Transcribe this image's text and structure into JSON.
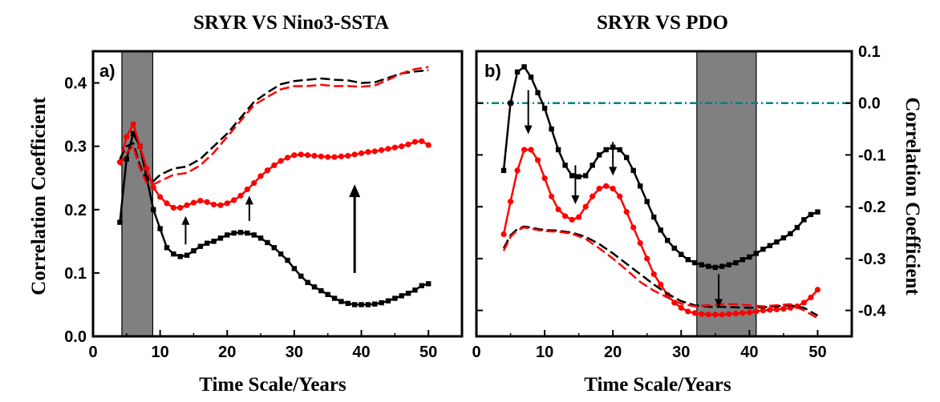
{
  "chart_data": [
    {
      "panel_label": "a)",
      "title": "SRYR VS Nino3-SSTA",
      "xlabel": "Time Scale/Years",
      "ylabel": "Correlation Coefficient",
      "xlim": [
        0,
        55
      ],
      "ylim": [
        0.0,
        0.45
      ],
      "x_ticks": [
        0,
        10,
        20,
        30,
        40,
        50
      ],
      "y_ticks": [
        0.0,
        0.1,
        0.2,
        0.3,
        0.4
      ],
      "y_tick_labels": [
        "0.0",
        "0.1",
        "0.2",
        "0.3",
        "0.4"
      ],
      "shaded_region": [
        4.3,
        8.9
      ],
      "series": [
        {
          "name": "black-squares",
          "color": "#000000",
          "style": "solid",
          "marker": "square",
          "x": [
            4,
            5,
            6,
            7,
            8,
            9,
            10,
            11,
            12,
            13,
            14,
            15,
            16,
            17,
            18,
            19,
            20,
            21,
            22,
            23,
            24,
            25,
            26,
            27,
            28,
            29,
            30,
            31,
            32,
            33,
            34,
            35,
            36,
            37,
            38,
            39,
            40,
            41,
            42,
            43,
            44,
            45,
            46,
            47,
            48,
            49,
            50
          ],
          "y": [
            0.18,
            0.28,
            0.32,
            0.3,
            0.25,
            0.2,
            0.17,
            0.14,
            0.13,
            0.126,
            0.128,
            0.135,
            0.142,
            0.147,
            0.15,
            0.155,
            0.16,
            0.163,
            0.164,
            0.163,
            0.16,
            0.155,
            0.148,
            0.14,
            0.13,
            0.12,
            0.107,
            0.095,
            0.085,
            0.078,
            0.072,
            0.066,
            0.06,
            0.055,
            0.052,
            0.05,
            0.05,
            0.05,
            0.051,
            0.053,
            0.056,
            0.06,
            0.064,
            0.068,
            0.073,
            0.08,
            0.083
          ]
        },
        {
          "name": "red-circles",
          "color": "#ff0000",
          "style": "solid",
          "marker": "circle",
          "x": [
            4,
            5,
            6,
            7,
            8,
            9,
            10,
            11,
            12,
            13,
            14,
            15,
            16,
            17,
            18,
            19,
            20,
            21,
            22,
            23,
            24,
            25,
            26,
            27,
            28,
            29,
            30,
            31,
            32,
            33,
            34,
            35,
            36,
            37,
            38,
            39,
            40,
            41,
            42,
            43,
            44,
            45,
            46,
            47,
            48,
            49,
            50
          ],
          "y": [
            0.275,
            0.315,
            0.335,
            0.3,
            0.265,
            0.235,
            0.22,
            0.21,
            0.203,
            0.203,
            0.207,
            0.211,
            0.214,
            0.212,
            0.208,
            0.207,
            0.21,
            0.215,
            0.222,
            0.232,
            0.242,
            0.253,
            0.262,
            0.27,
            0.277,
            0.282,
            0.286,
            0.287,
            0.286,
            0.285,
            0.284,
            0.283,
            0.283,
            0.284,
            0.285,
            0.287,
            0.289,
            0.291,
            0.292,
            0.294,
            0.296,
            0.298,
            0.3,
            0.303,
            0.307,
            0.308,
            0.302
          ]
        },
        {
          "name": "black-dashed",
          "color": "#000000",
          "style": "dashed",
          "marker": "none",
          "x": [
            4,
            5,
            6,
            7,
            8,
            9,
            10,
            12,
            14,
            16,
            18,
            20,
            22,
            24,
            26,
            28,
            30,
            32,
            34,
            36,
            38,
            40,
            42,
            44,
            46,
            48,
            50
          ],
          "y": [
            0.28,
            0.3,
            0.305,
            0.27,
            0.245,
            0.245,
            0.255,
            0.265,
            0.268,
            0.28,
            0.3,
            0.32,
            0.345,
            0.37,
            0.385,
            0.398,
            0.403,
            0.405,
            0.407,
            0.405,
            0.404,
            0.4,
            0.401,
            0.408,
            0.415,
            0.418,
            0.42
          ]
        },
        {
          "name": "red-dashed",
          "color": "#ff0000",
          "style": "dashed",
          "marker": "none",
          "x": [
            4,
            5,
            6,
            7,
            8,
            9,
            10,
            12,
            14,
            16,
            18,
            20,
            22,
            24,
            26,
            28,
            30,
            32,
            34,
            36,
            38,
            40,
            42,
            44,
            46,
            48,
            50
          ],
          "y": [
            0.27,
            0.29,
            0.3,
            0.265,
            0.242,
            0.24,
            0.245,
            0.255,
            0.258,
            0.27,
            0.29,
            0.315,
            0.34,
            0.365,
            0.378,
            0.39,
            0.395,
            0.395,
            0.397,
            0.395,
            0.395,
            0.394,
            0.396,
            0.405,
            0.415,
            0.422,
            0.425
          ]
        }
      ],
      "arrows": [
        {
          "direction": "up",
          "x": 13.8,
          "y_start": 0.145,
          "y_end": 0.19
        },
        {
          "direction": "up",
          "x": 23.3,
          "y_start": 0.182,
          "y_end": 0.222
        },
        {
          "direction": "up",
          "x": 39.0,
          "y_start": 0.1,
          "y_end": 0.24
        }
      ]
    },
    {
      "panel_label": "b)",
      "title": "SRYR VS PDO",
      "xlabel": "Time Scale/Years",
      "ylabel": "Correlation Coefficient",
      "xlim": [
        0,
        55
      ],
      "ylim": [
        -0.45,
        0.1
      ],
      "x_ticks": [
        0,
        10,
        20,
        30,
        40,
        50
      ],
      "y_ticks": [
        -0.4,
        -0.3,
        -0.2,
        -0.1,
        0.0,
        0.1
      ],
      "y_tick_labels": [
        "-0.4",
        "-0.3",
        "-0.2",
        "-0.1",
        "0.0",
        "0.1"
      ],
      "shaded_region": [
        32.3,
        41.0
      ],
      "reference_line": {
        "y": 0.0,
        "color": "#00808a",
        "style": "dash-dot"
      },
      "series": [
        {
          "name": "black-squares",
          "color": "#000000",
          "style": "solid",
          "marker": "square",
          "x": [
            4,
            5,
            6,
            7,
            8,
            9,
            10,
            11,
            12,
            13,
            14,
            15,
            16,
            17,
            18,
            19,
            20,
            21,
            22,
            23,
            24,
            25,
            26,
            27,
            28,
            29,
            30,
            31,
            32,
            33,
            34,
            35,
            36,
            37,
            38,
            39,
            40,
            41,
            42,
            43,
            44,
            45,
            46,
            47,
            48,
            49,
            50
          ],
          "y": [
            -0.13,
            0.0,
            0.06,
            0.07,
            0.05,
            0.02,
            -0.01,
            -0.05,
            -0.09,
            -0.12,
            -0.14,
            -0.142,
            -0.14,
            -0.12,
            -0.1,
            -0.09,
            -0.085,
            -0.09,
            -0.105,
            -0.13,
            -0.16,
            -0.19,
            -0.22,
            -0.245,
            -0.265,
            -0.28,
            -0.292,
            -0.302,
            -0.308,
            -0.312,
            -0.315,
            -0.317,
            -0.315,
            -0.312,
            -0.308,
            -0.302,
            -0.297,
            -0.29,
            -0.282,
            -0.275,
            -0.268,
            -0.26,
            -0.252,
            -0.24,
            -0.225,
            -0.215,
            -0.21
          ]
        },
        {
          "name": "red-circles",
          "color": "#ff0000",
          "style": "solid",
          "marker": "circle",
          "x": [
            4,
            5,
            6,
            7,
            8,
            9,
            10,
            11,
            12,
            13,
            14,
            15,
            16,
            17,
            18,
            19,
            20,
            21,
            22,
            23,
            24,
            25,
            26,
            27,
            28,
            29,
            30,
            31,
            32,
            33,
            34,
            35,
            36,
            37,
            38,
            39,
            40,
            41,
            42,
            43,
            44,
            45,
            46,
            47,
            48,
            49,
            50
          ],
          "y": [
            -0.253,
            -0.19,
            -0.13,
            -0.09,
            -0.09,
            -0.11,
            -0.145,
            -0.18,
            -0.205,
            -0.218,
            -0.225,
            -0.22,
            -0.2,
            -0.18,
            -0.165,
            -0.16,
            -0.165,
            -0.18,
            -0.21,
            -0.24,
            -0.27,
            -0.3,
            -0.33,
            -0.35,
            -0.37,
            -0.385,
            -0.395,
            -0.402,
            -0.405,
            -0.407,
            -0.408,
            -0.408,
            -0.408,
            -0.407,
            -0.406,
            -0.405,
            -0.404,
            -0.402,
            -0.4,
            -0.399,
            -0.398,
            -0.397,
            -0.395,
            -0.392,
            -0.385,
            -0.375,
            -0.36
          ]
        },
        {
          "name": "black-dashed",
          "color": "#000000",
          "style": "dashed",
          "marker": "none",
          "x": [
            4,
            5,
            6,
            7,
            8,
            9,
            10,
            12,
            14,
            16,
            18,
            20,
            22,
            24,
            26,
            28,
            30,
            32,
            34,
            36,
            38,
            40,
            42,
            44,
            46,
            48,
            50
          ],
          "y": [
            -0.28,
            -0.255,
            -0.243,
            -0.238,
            -0.24,
            -0.243,
            -0.245,
            -0.246,
            -0.25,
            -0.258,
            -0.272,
            -0.29,
            -0.31,
            -0.33,
            -0.35,
            -0.368,
            -0.382,
            -0.39,
            -0.393,
            -0.393,
            -0.394,
            -0.395,
            -0.394,
            -0.392,
            -0.39,
            -0.395,
            -0.41
          ]
        },
        {
          "name": "red-dashed",
          "color": "#ff0000",
          "style": "dashed",
          "marker": "none",
          "x": [
            4,
            5,
            6,
            7,
            8,
            9,
            10,
            12,
            14,
            16,
            18,
            20,
            22,
            24,
            26,
            28,
            30,
            32,
            34,
            36,
            38,
            40,
            42,
            44,
            46,
            48,
            50
          ],
          "y": [
            -0.285,
            -0.258,
            -0.245,
            -0.24,
            -0.242,
            -0.245,
            -0.247,
            -0.248,
            -0.252,
            -0.262,
            -0.28,
            -0.3,
            -0.322,
            -0.345,
            -0.362,
            -0.375,
            -0.387,
            -0.392,
            -0.39,
            -0.388,
            -0.388,
            -0.39,
            -0.392,
            -0.39,
            -0.388,
            -0.4,
            -0.415
          ]
        }
      ],
      "arrows": [
        {
          "direction": "down",
          "x": 7.6,
          "y_start": 0.025,
          "y_end": -0.06
        },
        {
          "direction": "down",
          "x": 14.5,
          "y_start": -0.12,
          "y_end": -0.195
        },
        {
          "direction": "down",
          "x": 20.0,
          "y_start": -0.075,
          "y_end": -0.14
        },
        {
          "direction": "down",
          "x": 35.5,
          "y_start": -0.33,
          "y_end": -0.395
        }
      ]
    }
  ]
}
